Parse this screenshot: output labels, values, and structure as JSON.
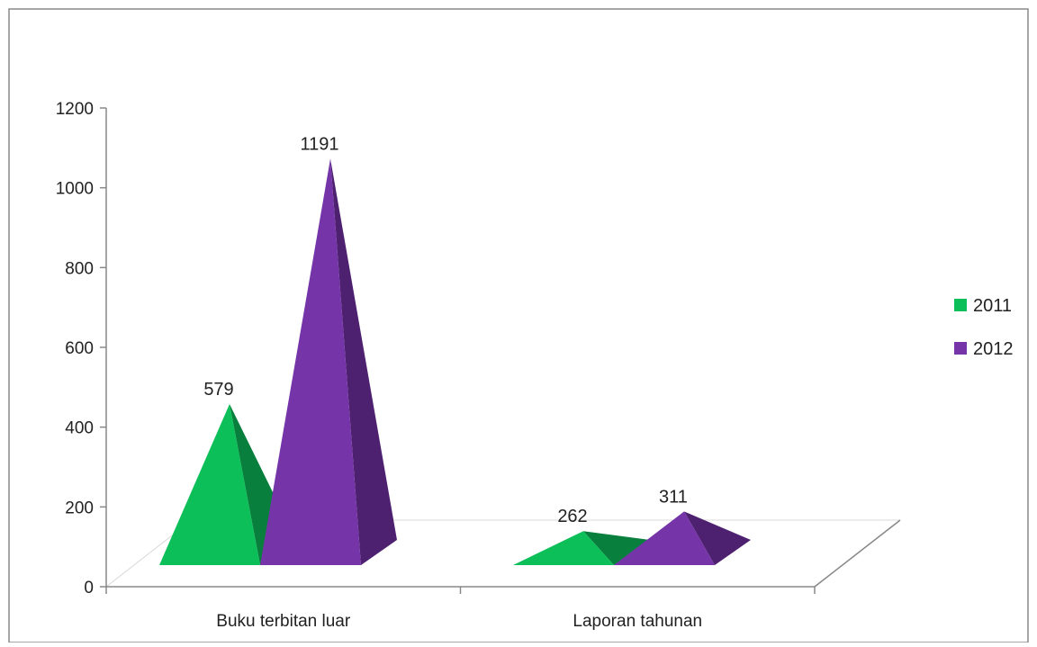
{
  "chart_data": {
    "type": "bar",
    "style": "3d-pyramid",
    "categories": [
      "Buku terbitan luar",
      "Laporan tahunan"
    ],
    "series": [
      {
        "name": "2011",
        "values": [
          579,
          262
        ],
        "color": "#0cbf59",
        "side_color": "#087f3d"
      },
      {
        "name": "2012",
        "values": [
          1191,
          311
        ],
        "color": "#7535a8",
        "side_color": "#4d2070"
      }
    ],
    "data_labels": [
      [
        "579",
        "262"
      ],
      [
        "1191",
        "311"
      ]
    ],
    "y_ticks": [
      0,
      200,
      400,
      600,
      800,
      1000,
      1200
    ],
    "ylim": [
      0,
      1200
    ],
    "title": "",
    "xlabel": "",
    "ylabel": "",
    "legend_position": "right",
    "grid": false,
    "border_color": "#888888",
    "axis_color": "#888888"
  }
}
